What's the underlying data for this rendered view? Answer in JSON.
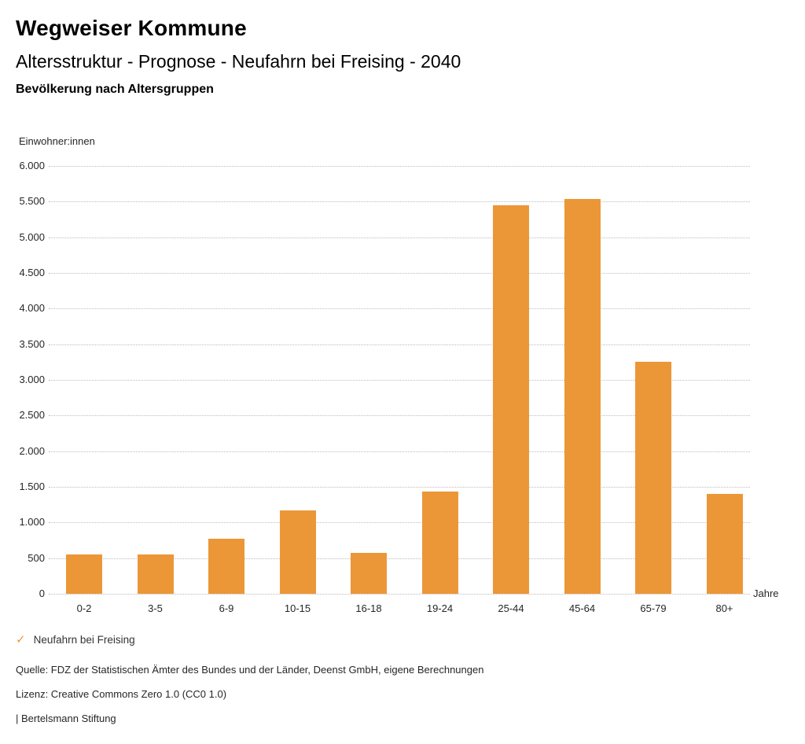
{
  "header": {
    "title": "Wegweiser Kommune",
    "subtitle": "Altersstruktur - Prognose - Neufahrn bei Freising - 2040",
    "section_heading": "Bevölkerung nach Altersgruppen"
  },
  "chart_data": {
    "type": "bar",
    "title": "Bevölkerung nach Altersgruppen",
    "series_name": "Neufahrn bei Freising",
    "categories": [
      "0-2",
      "3-5",
      "6-9",
      "10-15",
      "16-18",
      "19-24",
      "25-44",
      "45-64",
      "65-79",
      "80+"
    ],
    "values": [
      555,
      555,
      770,
      1170,
      575,
      1430,
      5450,
      5540,
      3255,
      1400
    ],
    "ylabel": "Einwohner:innen",
    "xlabel": "Jahre",
    "ylim": [
      0,
      6000
    ],
    "ytick_values": [
      0,
      500,
      1000,
      1500,
      2000,
      2500,
      3000,
      3500,
      4000,
      4500,
      5000,
      5500,
      6000
    ],
    "ytick_labels": [
      "0",
      "500",
      "1.000",
      "1.500",
      "2.000",
      "2.500",
      "3.000",
      "3.500",
      "4.000",
      "4.500",
      "5.000",
      "5.500",
      "6.000"
    ],
    "grid": "horizontal-dotted",
    "legend_position": "bottom-left",
    "bar_color": "#EC9737"
  },
  "legend": {
    "marker": "✓",
    "label": "Neufahrn bei Freising"
  },
  "footer": {
    "source": "Quelle: FDZ der Statistischen Ämter des Bundes und der Länder, Deenst GmbH, eigene Berechnungen",
    "license": "Lizenz: Creative Commons Zero 1.0 (CC0 1.0)",
    "brand": "| Bertelsmann Stiftung"
  },
  "colors": {
    "bar": "#EC9737",
    "text": "#262626",
    "gridline": "#bdbdbd"
  }
}
